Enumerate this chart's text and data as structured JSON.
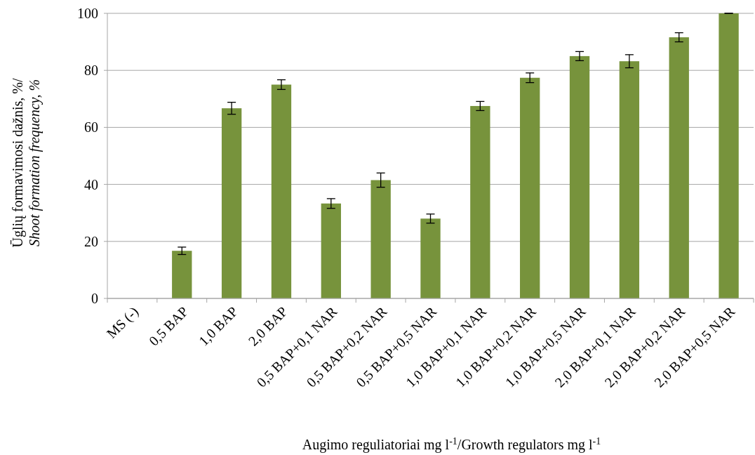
{
  "chart_data": {
    "type": "bar",
    "ylabel": "Ūglių formavimosi dažnis, %/\nShoot formation frequency, %",
    "xlabel": "Augimo reguliatoriai mg l$^{-1}$/Growth regulators mg l$^{-1}$",
    "categories": [
      "MS (-)",
      "0,5 BAP",
      "1,0 BAP",
      "2,0 BAP",
      "0,5 BAP+0,1 NAR",
      "0,5 BAP+0,2 NAR",
      "0,5 BAP+0,5 NAR",
      "1,0 BAP+0,1 NAR",
      "1,0 BAP+0,2 NAR",
      "1,0 BAP+0,5 NAR",
      "2,0 BAP+0,1 NAR",
      "2,0 BAP+0,2 NAR",
      "2,0 BAP+0,5 NAR"
    ],
    "values": [
      0,
      16.7,
      66.7,
      75,
      33.3,
      41.5,
      28,
      67.5,
      77.4,
      85,
      83.2,
      91.6,
      100
    ],
    "errors": [
      null,
      1.3,
      2.1,
      1.7,
      1.7,
      2.5,
      1.6,
      1.6,
      1.7,
      1.6,
      2.3,
      1.6,
      0
    ],
    "color": "#77933c",
    "ylim": [
      0,
      100
    ],
    "yticks": [
      0,
      20,
      40,
      60,
      80,
      100
    ],
    "grid": "y"
  }
}
